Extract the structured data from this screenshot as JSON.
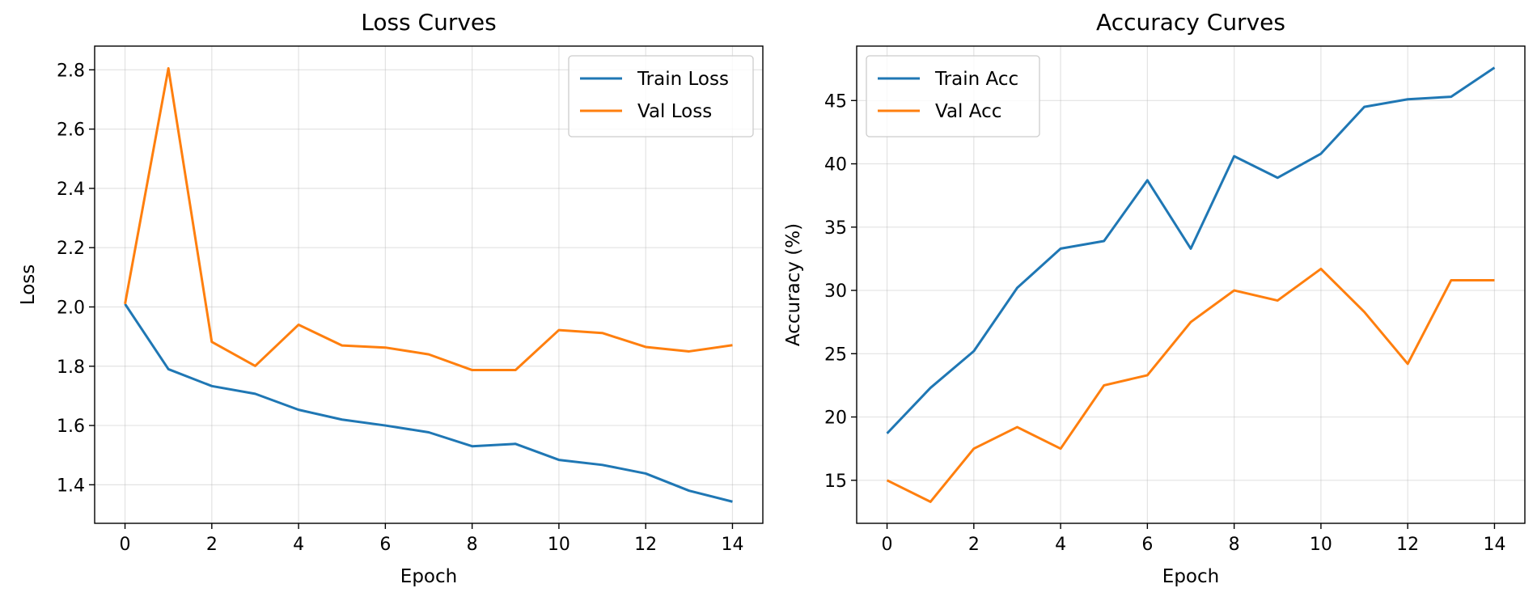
{
  "colors": {
    "series_1": "#1f77b4",
    "series_2": "#ff7f0e"
  },
  "chart_data": [
    {
      "type": "line",
      "title": "Loss Curves",
      "xlabel": "Epoch",
      "ylabel": "Loss",
      "x": [
        0,
        1,
        2,
        3,
        4,
        5,
        6,
        7,
        8,
        9,
        10,
        11,
        12,
        13,
        14
      ],
      "xlim": [
        -0.7,
        14.7
      ],
      "ylim": [
        1.27,
        2.88
      ],
      "xticks": [
        0,
        2,
        4,
        6,
        8,
        10,
        12,
        14
      ],
      "yticks": [
        1.4,
        1.6,
        1.8,
        2.0,
        2.2,
        2.4,
        2.6,
        2.8
      ],
      "grid": true,
      "legend_position": "top-right",
      "series": [
        {
          "name": "Train Loss",
          "color": "#1f77b4",
          "values": [
            2.01,
            1.79,
            1.733,
            1.707,
            1.653,
            1.62,
            1.6,
            1.577,
            1.53,
            1.538,
            1.484,
            1.467,
            1.438,
            1.38,
            1.343
          ]
        },
        {
          "name": "Val Loss",
          "color": "#ff7f0e",
          "values": [
            2.01,
            2.805,
            1.882,
            1.801,
            1.94,
            1.87,
            1.863,
            1.84,
            1.787,
            1.787,
            1.922,
            1.912,
            1.865,
            1.85,
            1.871
          ]
        }
      ]
    },
    {
      "type": "line",
      "title": "Accuracy Curves",
      "xlabel": "Epoch",
      "ylabel": "Accuracy (%)",
      "x": [
        0,
        1,
        2,
        3,
        4,
        5,
        6,
        7,
        8,
        9,
        10,
        11,
        12,
        13,
        14
      ],
      "xlim": [
        -0.7,
        14.7
      ],
      "ylim": [
        11.6,
        49.3
      ],
      "xticks": [
        0,
        2,
        4,
        6,
        8,
        10,
        12,
        14
      ],
      "yticks": [
        15,
        20,
        25,
        30,
        35,
        40,
        45
      ],
      "grid": true,
      "legend_position": "top-left",
      "series": [
        {
          "name": "Train Acc",
          "color": "#1f77b4",
          "values": [
            18.7,
            22.3,
            25.2,
            30.2,
            33.3,
            33.9,
            38.7,
            33.3,
            40.6,
            38.9,
            40.8,
            44.5,
            45.1,
            45.3,
            47.6
          ]
        },
        {
          "name": "Val Acc",
          "color": "#ff7f0e",
          "values": [
            15.0,
            13.3,
            17.5,
            19.2,
            17.5,
            22.5,
            23.3,
            27.5,
            30.0,
            29.2,
            31.7,
            28.3,
            24.2,
            30.8,
            30.8
          ]
        }
      ]
    }
  ]
}
